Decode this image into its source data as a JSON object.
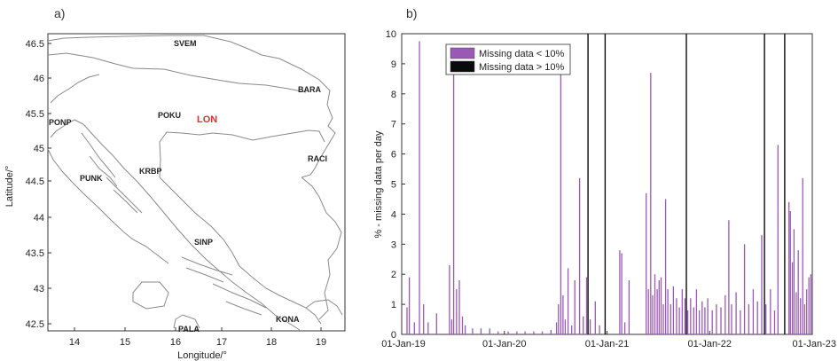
{
  "panel_a": {
    "label": "a)",
    "xlabel": "Longitude/°",
    "ylabel": "Latitude/°",
    "x_ticks": [
      "14",
      "15",
      "16",
      "17",
      "18",
      "19"
    ],
    "y_ticks": [
      "46.5",
      "46",
      "45.5",
      "45",
      "44.5",
      "44",
      "43.5",
      "43",
      "42.5"
    ],
    "stations": [
      {
        "name": "SVEM",
        "color": "#222222"
      },
      {
        "name": "BARA",
        "color": "#222222"
      },
      {
        "name": "POKU",
        "color": "#222222"
      },
      {
        "name": "LON",
        "color": "#e0302a"
      },
      {
        "name": "PONP",
        "color": "#222222"
      },
      {
        "name": "RACI",
        "color": "#222222"
      },
      {
        "name": "PUNK",
        "color": "#222222"
      },
      {
        "name": "KRBP",
        "color": "#222222"
      },
      {
        "name": "SINP",
        "color": "#222222"
      },
      {
        "name": "KONA",
        "color": "#222222"
      },
      {
        "name": "PALA",
        "color": "#222222"
      }
    ]
  },
  "chart_data": {
    "type": "bar",
    "panel_label": "b)",
    "ylabel": "% - missing data per day",
    "xlabel": "",
    "ylim": [
      0,
      10
    ],
    "y_ticks": [
      "0",
      "1",
      "2",
      "3",
      "4",
      "5",
      "6",
      "7",
      "8",
      "9",
      "10"
    ],
    "x_ticks": [
      "01-Jan-19",
      "01-Jan-20",
      "01-Jan-21",
      "01-Jan-22",
      "01-Jan-23"
    ],
    "legend_position": "top-left",
    "series": [
      {
        "name": "Missing data < 10%",
        "color": "#9b59b6",
        "points": [
          [
            "2019-01-20",
            0.9
          ],
          [
            "2019-01-28",
            1.9
          ],
          [
            "2019-02-15",
            0.4
          ],
          [
            "2019-03-05",
            9.75
          ],
          [
            "2019-03-20",
            1.0
          ],
          [
            "2019-04-05",
            0.4
          ],
          [
            "2019-05-05",
            0.7
          ],
          [
            "2019-06-20",
            2.3
          ],
          [
            "2019-06-28",
            0.5
          ],
          [
            "2019-07-05",
            8.8
          ],
          [
            "2019-07-15",
            1.5
          ],
          [
            "2019-07-25",
            1.8
          ],
          [
            "2019-08-05",
            0.6
          ],
          [
            "2019-08-15",
            0.3
          ],
          [
            "2019-09-10",
            0.2
          ],
          [
            "2019-10-10",
            0.2
          ],
          [
            "2019-11-10",
            0.2
          ],
          [
            "2019-12-10",
            0.1
          ],
          [
            "2020-01-15",
            0.1
          ],
          [
            "2020-02-15",
            0.1
          ],
          [
            "2020-03-15",
            0.1
          ],
          [
            "2020-04-15",
            0.1
          ],
          [
            "2020-05-15",
            0.1
          ],
          [
            "2020-06-15",
            0.15
          ],
          [
            "2020-07-05",
            0.4
          ],
          [
            "2020-07-12",
            1.0
          ],
          [
            "2020-07-20",
            8.8
          ],
          [
            "2020-07-28",
            1.3
          ],
          [
            "2020-08-05",
            0.5
          ],
          [
            "2020-08-15",
            2.2
          ],
          [
            "2020-08-28",
            0.3
          ],
          [
            "2020-09-08",
            1.8
          ],
          [
            "2020-09-25",
            5.2
          ],
          [
            "2020-10-08",
            0.6
          ],
          [
            "2020-10-20",
            1.9
          ],
          [
            "2020-11-02",
            0.5
          ],
          [
            "2020-11-20",
            1.1
          ],
          [
            "2020-12-05",
            0.3
          ],
          [
            "2021-02-15",
            2.8
          ],
          [
            "2021-02-22",
            2.7
          ],
          [
            "2021-03-05",
            0.4
          ],
          [
            "2021-03-20",
            1.8
          ],
          [
            "2021-05-20",
            4.7
          ],
          [
            "2021-05-28",
            1.5
          ],
          [
            "2021-06-05",
            8.7
          ],
          [
            "2021-06-12",
            1.3
          ],
          [
            "2021-06-20",
            2.0
          ],
          [
            "2021-06-28",
            1.5
          ],
          [
            "2021-07-05",
            1.8
          ],
          [
            "2021-07-12",
            1.9
          ],
          [
            "2021-07-20",
            1.0
          ],
          [
            "2021-07-28",
            4.5
          ],
          [
            "2021-08-05",
            1.5
          ],
          [
            "2021-08-15",
            1.0
          ],
          [
            "2021-08-25",
            1.6
          ],
          [
            "2021-09-05",
            1.2
          ],
          [
            "2021-09-15",
            0.9
          ],
          [
            "2021-09-25",
            1.5
          ],
          [
            "2021-10-05",
            1.2
          ],
          [
            "2021-10-15",
            0.8
          ],
          [
            "2021-10-25",
            1.2
          ],
          [
            "2021-11-05",
            0.9
          ],
          [
            "2021-11-15",
            1.5
          ],
          [
            "2021-11-25",
            0.8
          ],
          [
            "2021-12-05",
            1.1
          ],
          [
            "2021-12-15",
            0.9
          ],
          [
            "2021-12-25",
            1.2
          ],
          [
            "2022-01-10",
            0.8
          ],
          [
            "2022-01-25",
            1.0
          ],
          [
            "2022-02-10",
            0.9
          ],
          [
            "2022-02-25",
            1.3
          ],
          [
            "2022-03-10",
            3.8
          ],
          [
            "2022-03-20",
            1.0
          ],
          [
            "2022-04-05",
            1.4
          ],
          [
            "2022-04-20",
            0.8
          ],
          [
            "2022-05-05",
            3.0
          ],
          [
            "2022-05-20",
            1.0
          ],
          [
            "2022-06-05",
            1.5
          ],
          [
            "2022-06-20",
            1.1
          ],
          [
            "2022-07-05",
            3.3
          ],
          [
            "2022-07-20",
            1.0
          ],
          [
            "2022-08-05",
            1.5
          ],
          [
            "2022-08-20",
            0.8
          ],
          [
            "2022-09-01",
            6.3
          ],
          [
            "2022-10-10",
            4.4
          ],
          [
            "2022-10-15",
            4.1
          ],
          [
            "2022-10-22",
            2.4
          ],
          [
            "2022-10-28",
            3.5
          ],
          [
            "2022-11-05",
            1.4
          ],
          [
            "2022-11-12",
            2.8
          ],
          [
            "2022-11-20",
            1.2
          ],
          [
            "2022-11-28",
            5.2
          ],
          [
            "2022-12-05",
            1.0
          ],
          [
            "2022-12-12",
            1.5
          ],
          [
            "2022-12-20",
            1.9
          ],
          [
            "2022-12-27",
            2.0
          ]
        ]
      },
      {
        "name": "Missing data > 10%",
        "color": "#0a0a0a",
        "dates": [
          "2020-10-25",
          "2020-12-25",
          "2021-10-10",
          "2022-07-15",
          "2022-09-25"
        ]
      }
    ]
  }
}
